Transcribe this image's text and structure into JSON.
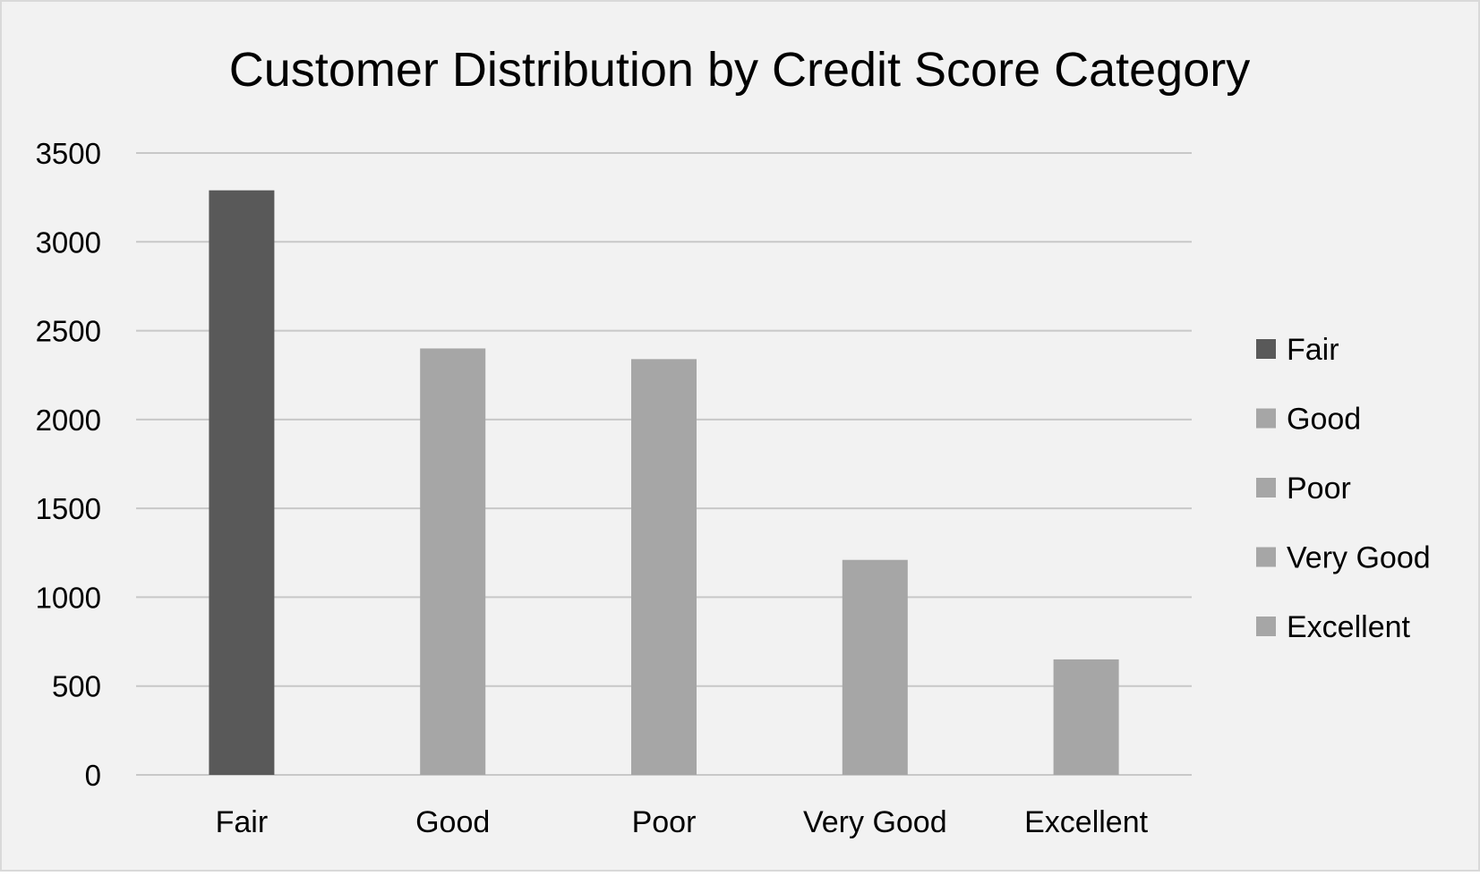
{
  "chart_data": {
    "type": "bar",
    "title": "Customer Distribution by Credit Score Category",
    "categories": [
      "Fair",
      "Good",
      "Poor",
      "Very Good",
      "Excellent"
    ],
    "values": [
      3290,
      2400,
      2340,
      1210,
      650
    ],
    "ylim": [
      0,
      3500
    ],
    "yticks": [
      0,
      500,
      1000,
      1500,
      2000,
      2500,
      3000,
      3500
    ],
    "xlabel": "",
    "ylabel": "",
    "grid": true,
    "legend": {
      "position": "right",
      "entries": [
        "Fair",
        "Good",
        "Poor",
        "Very Good",
        "Excellent"
      ]
    },
    "colors": {
      "highlight": "#595959",
      "default": "#a6a6a6",
      "background": "#f2f2f2",
      "gridline": "#c8c8c8",
      "border": "#d9d9d9"
    }
  }
}
